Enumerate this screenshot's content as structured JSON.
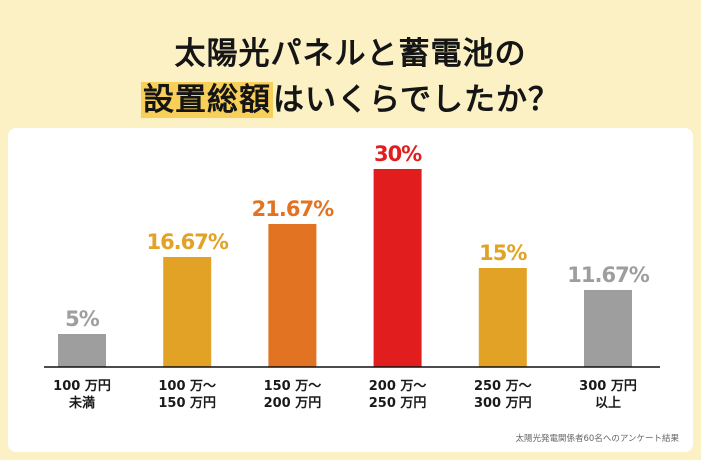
{
  "title": {
    "line1": "太陽光パネルと蓄電池の",
    "highlight": "設置総額",
    "line2_rest": "はいくらでしたか？"
  },
  "note": "太陽光発電関係者60名へのアンケート結果",
  "chart_data": {
    "type": "bar",
    "categories": [
      [
        "100 万円",
        "未満"
      ],
      [
        "100 万〜",
        "150 万円"
      ],
      [
        "150 万〜",
        "200 万円"
      ],
      [
        "200 万〜",
        "250 万円"
      ],
      [
        "250 万〜",
        "300 万円"
      ],
      [
        "300 万円",
        "以上"
      ]
    ],
    "values": [
      5,
      16.67,
      21.67,
      30,
      15,
      11.67
    ],
    "labels": [
      "5%",
      "16.67%",
      "21.67%",
      "30%",
      "15%",
      "11.67%"
    ],
    "unit": "%",
    "colors": [
      "#9e9e9e",
      "#e2a226",
      "#e27322",
      "#e21d1d",
      "#e2a226",
      "#9e9e9e"
    ],
    "ylim": [
      0,
      32
    ],
    "grid": false
  }
}
